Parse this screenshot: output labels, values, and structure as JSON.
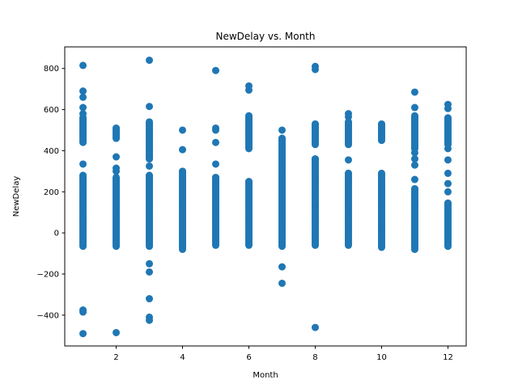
{
  "chart_data": {
    "type": "scatter",
    "title": "NewDelay vs. Month",
    "xlabel": "Month",
    "ylabel": "NewDelay",
    "xlim": [
      0.45,
      12.55
    ],
    "ylim": [
      -550,
      905
    ],
    "xticks": [
      2,
      4,
      6,
      8,
      10,
      12
    ],
    "yticks": [
      -400,
      -200,
      0,
      200,
      400,
      600,
      800
    ],
    "grid": false,
    "legend": false,
    "marker_color": "#1f77b4",
    "series": [
      {
        "dense_ranges": [
          {
            "x": 1,
            "min": -65,
            "max": 280
          },
          {
            "x": 2,
            "min": -65,
            "max": 270
          },
          {
            "x": 3,
            "min": -65,
            "max": 280
          },
          {
            "x": 4,
            "min": -80,
            "max": 300
          },
          {
            "x": 5,
            "min": -60,
            "max": 270
          },
          {
            "x": 6,
            "min": -60,
            "max": 250
          },
          {
            "x": 7,
            "min": -65,
            "max": 460
          },
          {
            "x": 8,
            "min": -60,
            "max": 360
          },
          {
            "x": 9,
            "min": -60,
            "max": 290
          },
          {
            "x": 10,
            "min": -70,
            "max": 290
          },
          {
            "x": 11,
            "min": -80,
            "max": 215
          },
          {
            "x": 12,
            "min": -65,
            "max": 145
          }
        ],
        "upper_clusters": [
          {
            "x": 1,
            "min": 440,
            "max": 560
          },
          {
            "x": 2,
            "min": 460,
            "max": 510
          },
          {
            "x": 3,
            "min": 360,
            "max": 540
          },
          {
            "x": 6,
            "min": 410,
            "max": 570
          },
          {
            "x": 8,
            "min": 430,
            "max": 530
          },
          {
            "x": 9,
            "min": 430,
            "max": 540
          },
          {
            "x": 10,
            "min": 450,
            "max": 530
          },
          {
            "x": 11,
            "min": 410,
            "max": 570
          },
          {
            "x": 12,
            "min": 430,
            "max": 560
          }
        ],
        "points": [
          {
            "x": 1,
            "y": 815
          },
          {
            "x": 1,
            "y": 690
          },
          {
            "x": 1,
            "y": 660
          },
          {
            "x": 1,
            "y": 610
          },
          {
            "x": 1,
            "y": 580
          },
          {
            "x": 1,
            "y": 335
          },
          {
            "x": 1,
            "y": -375
          },
          {
            "x": 1,
            "y": -385
          },
          {
            "x": 1,
            "y": -490
          },
          {
            "x": 2,
            "y": 370
          },
          {
            "x": 2,
            "y": 315
          },
          {
            "x": 2,
            "y": 300
          },
          {
            "x": 2,
            "y": -485
          },
          {
            "x": 3,
            "y": 840
          },
          {
            "x": 3,
            "y": 615
          },
          {
            "x": 3,
            "y": 325
          },
          {
            "x": 3,
            "y": -150
          },
          {
            "x": 3,
            "y": -190
          },
          {
            "x": 3,
            "y": -320
          },
          {
            "x": 3,
            "y": -410
          },
          {
            "x": 3,
            "y": -425
          },
          {
            "x": 4,
            "y": 500
          },
          {
            "x": 4,
            "y": 405
          },
          {
            "x": 5,
            "y": 790
          },
          {
            "x": 5,
            "y": 510
          },
          {
            "x": 5,
            "y": 500
          },
          {
            "x": 5,
            "y": 440
          },
          {
            "x": 5,
            "y": 335
          },
          {
            "x": 6,
            "y": 715
          },
          {
            "x": 6,
            "y": 695
          },
          {
            "x": 7,
            "y": 500
          },
          {
            "x": 7,
            "y": -165
          },
          {
            "x": 7,
            "y": -245
          },
          {
            "x": 8,
            "y": 810
          },
          {
            "x": 8,
            "y": 795
          },
          {
            "x": 8,
            "y": -460
          },
          {
            "x": 9,
            "y": 580
          },
          {
            "x": 9,
            "y": 565
          },
          {
            "x": 9,
            "y": 355
          },
          {
            "x": 11,
            "y": 685
          },
          {
            "x": 11,
            "y": 610
          },
          {
            "x": 11,
            "y": 390
          },
          {
            "x": 11,
            "y": 360
          },
          {
            "x": 11,
            "y": 330
          },
          {
            "x": 11,
            "y": 260
          },
          {
            "x": 12,
            "y": 625
          },
          {
            "x": 12,
            "y": 605
          },
          {
            "x": 12,
            "y": 410
          },
          {
            "x": 12,
            "y": 355
          },
          {
            "x": 12,
            "y": 290
          },
          {
            "x": 12,
            "y": 240
          },
          {
            "x": 12,
            "y": 200
          }
        ]
      }
    ]
  }
}
